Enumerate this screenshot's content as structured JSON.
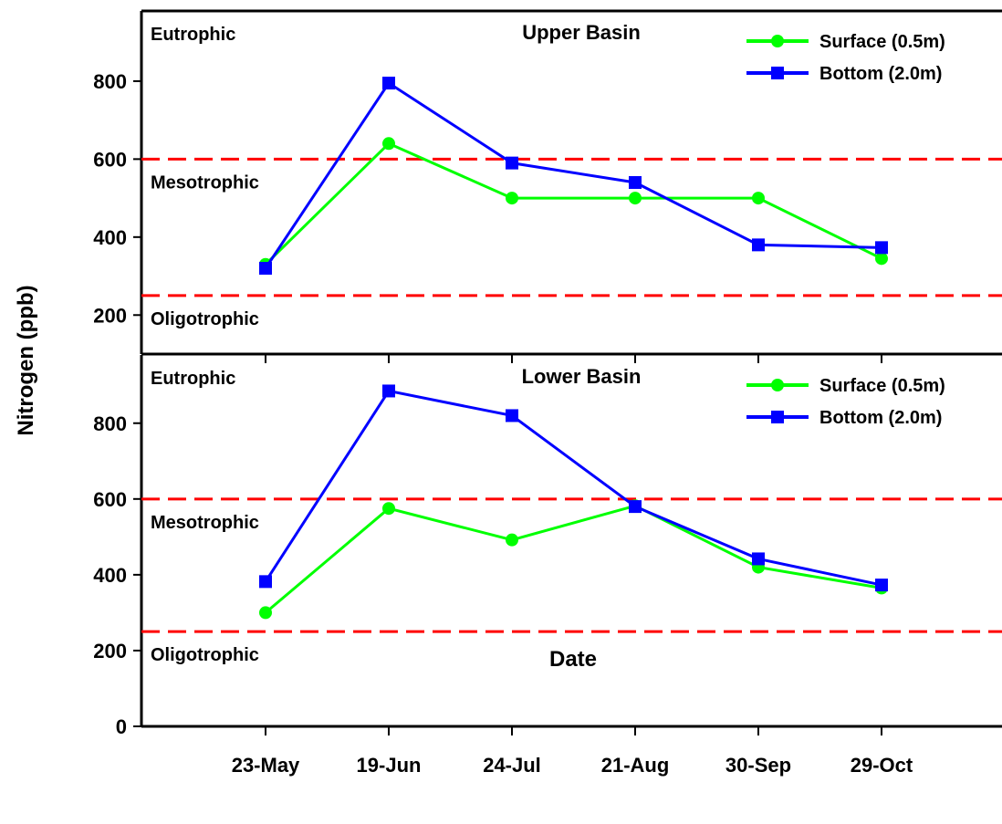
{
  "chart_data": [
    {
      "type": "line",
      "title": "Upper Basin",
      "categories": [
        "23-May",
        "19-Jun",
        "24-Jul",
        "21-Aug",
        "30-Sep",
        "29-Oct"
      ],
      "series": [
        {
          "name": "Surface (0.5m)",
          "color": "#00ff00",
          "marker": "circle",
          "values": [
            330,
            640,
            500,
            500,
            500,
            345
          ]
        },
        {
          "name": "Bottom (2.0m)",
          "color": "#0000ff",
          "marker": "square",
          "values": [
            320,
            795,
            590,
            540,
            380,
            373
          ]
        }
      ],
      "ylim": [
        100,
        980
      ],
      "yticks": [
        200,
        400,
        600,
        800
      ],
      "thresholds": [
        600,
        250
      ],
      "threshold_color": "#ff0000",
      "zones": [
        "Eutrophic",
        "Mesotrophic",
        "Oligotrophic"
      ],
      "legend": "top-right"
    },
    {
      "type": "line",
      "title": "Lower Basin",
      "categories": [
        "23-May",
        "19-Jun",
        "24-Jul",
        "21-Aug",
        "30-Sep",
        "29-Oct"
      ],
      "series": [
        {
          "name": "Surface (0.5m)",
          "color": "#00ff00",
          "marker": "circle",
          "values": [
            300,
            575,
            492,
            582,
            420,
            365
          ]
        },
        {
          "name": "Bottom (2.0m)",
          "color": "#0000ff",
          "marker": "square",
          "values": [
            382,
            885,
            820,
            580,
            442,
            373
          ]
        }
      ],
      "ylim": [
        0,
        980
      ],
      "yticks": [
        0,
        200,
        400,
        600,
        800
      ],
      "thresholds": [
        600,
        250
      ],
      "threshold_color": "#ff0000",
      "zones": [
        "Eutrophic",
        "Mesotrophic",
        "Oligotrophic"
      ],
      "legend": "top-right"
    }
  ],
  "xlabel": "Date",
  "ylabel": "Nitrogen (ppb)"
}
